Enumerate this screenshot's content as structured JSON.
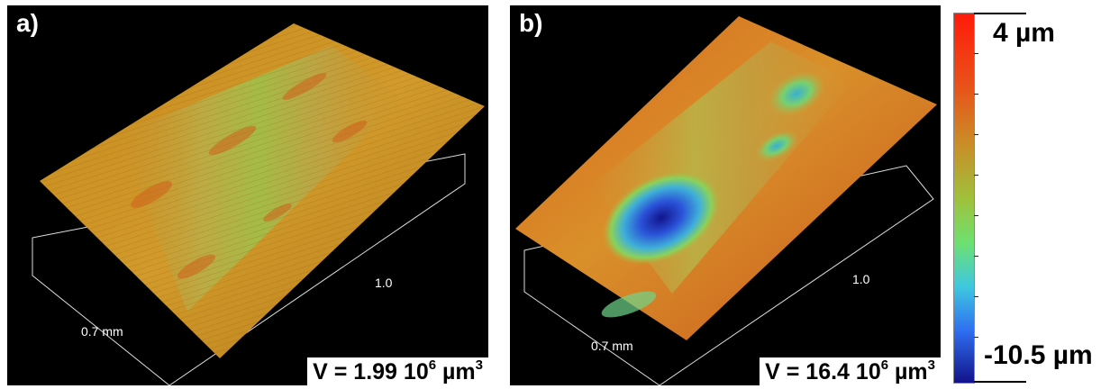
{
  "panel_a": {
    "label": "a)",
    "axis_short": "0.7 mm",
    "axis_long": "1.0",
    "volume_prefix": "V = 1.99 10",
    "volume_exponent": "6",
    "volume_unit": " µm",
    "volume_unit_exponent": "3"
  },
  "panel_b": {
    "label": "b)",
    "axis_short": "0.7 mm",
    "axis_long": "1.0",
    "volume_prefix": "V = 16.4 10",
    "volume_exponent": "6",
    "volume_unit": " µm",
    "volume_unit_exponent": "3"
  },
  "colorbar": {
    "max_label": "4 µm",
    "min_label": "-10.5 µm",
    "colors": [
      "#ff1a0a",
      "#e8531a",
      "#c89028",
      "#a0c03a",
      "#6ee070",
      "#3fc8e0",
      "#2f6ef0",
      "#12128a"
    ]
  }
}
